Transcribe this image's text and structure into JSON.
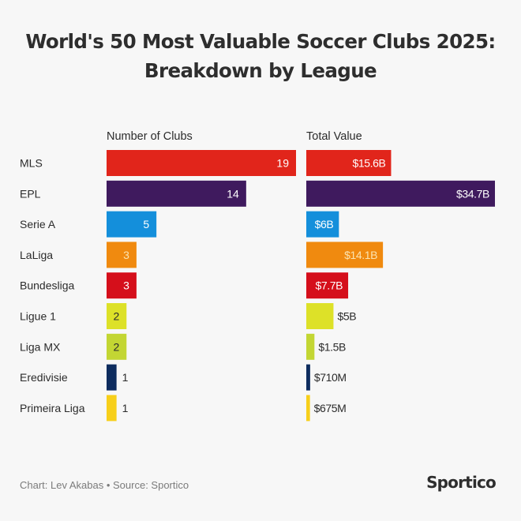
{
  "title": {
    "line1": "World's 50 Most Valuable Soccer Clubs 2025:",
    "line2": "Breakdown by League"
  },
  "footer": {
    "credit": "Chart: Lev Akabas • Source: Sportico",
    "logo": "Sportico"
  },
  "chart_data": {
    "type": "bar",
    "orientation": "horizontal",
    "title": "World's 50 Most Valuable Soccer Clubs 2025: Breakdown by League",
    "categories": [
      "MLS",
      "EPL",
      "Serie A",
      "LaLiga",
      "Bundesliga",
      "Ligue 1",
      "Liga MX",
      "Eredivisie",
      "Primeira Liga"
    ],
    "colors": [
      "#e1251b",
      "#3f1a5e",
      "#148fdb",
      "#f08a0f",
      "#d50f1b",
      "#dde128",
      "#c3d633",
      "#0d2c5e",
      "#f7cf1a"
    ],
    "series": [
      {
        "name": "Number of Clubs",
        "values": [
          19,
          14,
          5,
          3,
          3,
          2,
          2,
          1,
          1
        ],
        "labels": [
          "19",
          "14",
          "5",
          "3",
          "3",
          "2",
          "2",
          "1",
          "1"
        ]
      },
      {
        "name": "Total Value",
        "unit": "USD billions",
        "values": [
          15.6,
          34.7,
          6,
          14.1,
          7.7,
          5,
          1.5,
          0.71,
          0.675
        ],
        "labels": [
          "$15.6B",
          "$34.7B",
          "$6B",
          "$14.1B",
          "$7.7B",
          "$5B",
          "$1.5B",
          "$710M",
          "$675M"
        ]
      }
    ],
    "label_inside": [
      true,
      true,
      true,
      true,
      true,
      false,
      false,
      false,
      false
    ],
    "label_inside_value": [
      true,
      true,
      true,
      true,
      true,
      false,
      false,
      false,
      false
    ],
    "label_color_inside": [
      "#ffffff",
      "#ffffff",
      "#ffffff",
      "#fbe3b0",
      "#ffffff",
      "#2b2b2b",
      "#2b2b2b",
      "#2b2b2b",
      "#2b2b2b"
    ],
    "xlabel": "",
    "ylabel": "",
    "grid": false,
    "legend": "none"
  }
}
